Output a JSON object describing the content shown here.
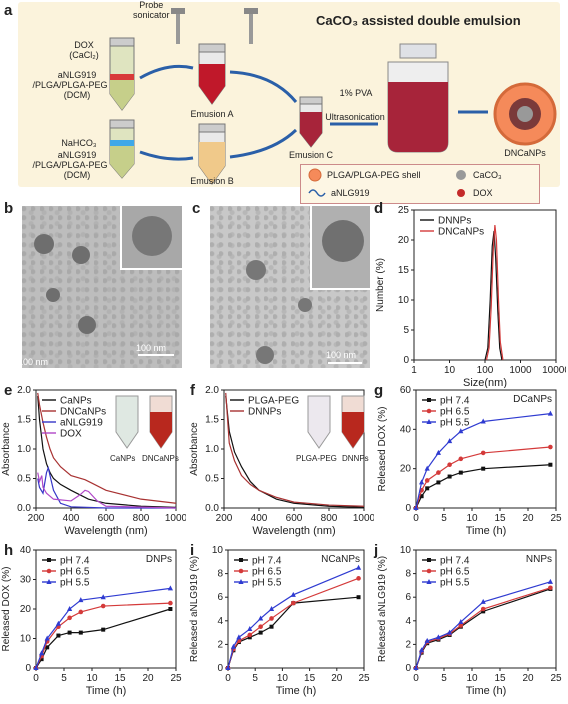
{
  "panels": {
    "a": "a",
    "b": "b",
    "c": "c",
    "d": "d",
    "e": "e",
    "f": "f",
    "g": "g",
    "h": "h",
    "i": "i",
    "j": "j"
  },
  "schematic": {
    "title": "CaCO₃ assisted double emulsion",
    "probe_sonicator": "Probe\nsonicator",
    "tube1_labels": [
      "DOX",
      "(CaCl₂)",
      "aNLG919",
      "/PLGA/PLGA-PEG",
      "(DCM)"
    ],
    "tube2_labels": [
      "NaHCO₃",
      "aNLG919",
      "/PLGA/PLGA-PEG",
      "(DCM)"
    ],
    "emulsion_a": "Emusion A",
    "emulsion_b": "Emusion B",
    "emulsion_c": "Emusion C",
    "pva": "1% PVA",
    "ultrasonication": "Ultrasonication",
    "product": "DNCaNPs",
    "legend": {
      "shell": "PLGA/PLGA-PEG shell",
      "caco3": "CaCO₃",
      "anlg": "aNLG919",
      "dox": "DOX"
    }
  },
  "tem": {
    "b_scale": "100 nm",
    "b_scale2": "100 nm",
    "c_scale": "100 nm"
  },
  "inset_e": {
    "tube1": "CaNPs",
    "tube2": "DNCaNPs"
  },
  "inset_f": {
    "tube1": "PLGA-PEG",
    "tube2": "DNNPs"
  },
  "chart_data": [
    {
      "id": "d",
      "type": "line",
      "xlabel": "Size(nm)",
      "ylabel": "Number (%)",
      "xscale": "log",
      "xlim": [
        1,
        10000
      ],
      "ylim": [
        0,
        25
      ],
      "xticks": [
        "1",
        "10",
        "100",
        "1000",
        "10000"
      ],
      "yticks": [
        "0",
        "5",
        "10",
        "15",
        "20",
        "25"
      ],
      "legend_position": "top-left",
      "series": [
        {
          "name": "DNNPs",
          "color": "#111111",
          "x": [
            100,
            120,
            140,
            160,
            180,
            200,
            230,
            260,
            300
          ],
          "y": [
            0,
            2,
            10,
            19,
            21.5,
            17,
            8,
            2,
            0
          ]
        },
        {
          "name": "DNCaNPs",
          "color": "#d43a3a",
          "x": [
            110,
            130,
            150,
            170,
            190,
            210,
            240,
            270,
            320
          ],
          "y": [
            0,
            2,
            9,
            18,
            22.5,
            20,
            10,
            3,
            0
          ]
        }
      ]
    },
    {
      "id": "e",
      "type": "line",
      "xlabel": "Wavelength (nm)",
      "ylabel": "Absorbance",
      "xlim": [
        200,
        1000
      ],
      "ylim": [
        0,
        2.0
      ],
      "xticks": [
        "200",
        "400",
        "600",
        "800",
        "1000"
      ],
      "yticks": [
        "0.0",
        "0.5",
        "1.0",
        "1.5",
        "2.0"
      ],
      "legend_position": "top-left",
      "series": [
        {
          "name": "CaNPs",
          "color": "#111111",
          "x": [
            210,
            220,
            240,
            260,
            280,
            300,
            340,
            400,
            500,
            600,
            800,
            1000
          ],
          "y": [
            1.9,
            1.5,
            1.0,
            0.75,
            0.6,
            0.5,
            0.4,
            0.3,
            0.15,
            0.08,
            0.03,
            0.01
          ]
        },
        {
          "name": "DNCaNPs",
          "color": "#a83232",
          "x": [
            210,
            220,
            240,
            260,
            280,
            300,
            340,
            400,
            480,
            520,
            600,
            800,
            1000
          ],
          "y": [
            1.95,
            1.75,
            1.45,
            1.2,
            1.0,
            0.85,
            0.7,
            0.55,
            0.48,
            0.42,
            0.3,
            0.15,
            0.08
          ]
        },
        {
          "name": "aNLG919",
          "color": "#3636c8",
          "x": [
            210,
            220,
            240,
            260,
            270,
            280,
            300,
            340,
            400,
            600,
            1000
          ],
          "y": [
            0.5,
            0.35,
            0.25,
            0.6,
            0.68,
            0.55,
            0.3,
            0.08,
            0.02,
            0.0,
            0.0
          ]
        },
        {
          "name": "DOX",
          "color": "#b048c8",
          "x": [
            210,
            220,
            233,
            240,
            260,
            300,
            400,
            450,
            480,
            500,
            550,
            600,
            1000
          ],
          "y": [
            0.6,
            0.45,
            0.55,
            0.35,
            0.25,
            0.15,
            0.12,
            0.22,
            0.3,
            0.28,
            0.12,
            0.03,
            0.0
          ]
        }
      ]
    },
    {
      "id": "f",
      "type": "line",
      "xlabel": "Wavelength (nm)",
      "ylabel": "Absorbance",
      "xlim": [
        200,
        1000
      ],
      "ylim": [
        0,
        2.0
      ],
      "xticks": [
        "200",
        "400",
        "600",
        "800",
        "1000"
      ],
      "yticks": [
        "0.0",
        "0.5",
        "1.0",
        "1.5",
        "2.0"
      ],
      "legend_position": "top-left",
      "series": [
        {
          "name": "PLGA-PEG",
          "color": "#111111",
          "x": [
            210,
            230,
            260,
            300,
            350,
            400,
            500,
            600,
            800,
            1000
          ],
          "y": [
            1.9,
            1.3,
            0.95,
            0.7,
            0.45,
            0.3,
            0.15,
            0.08,
            0.03,
            0.01
          ]
        },
        {
          "name": "DNNPs",
          "color": "#a83232",
          "x": [
            210,
            230,
            260,
            300,
            350,
            400,
            500,
            600,
            800,
            1000
          ],
          "y": [
            1.95,
            1.1,
            0.8,
            0.55,
            0.4,
            0.3,
            0.18,
            0.1,
            0.05,
            0.03
          ]
        }
      ]
    },
    {
      "id": "g",
      "type": "line",
      "title": "DCaNPs",
      "xlabel": "Time (h)",
      "ylabel": "Released DOX (%)",
      "xlim": [
        0,
        25
      ],
      "ylim": [
        0,
        60
      ],
      "xticks": [
        "0",
        "5",
        "10",
        "15",
        "20",
        "25"
      ],
      "yticks": [
        "0",
        "20",
        "40",
        "60"
      ],
      "legend_position": "top-left",
      "series": [
        {
          "name": "pH 7.4",
          "color": "#111111",
          "marker": "square",
          "x": [
            0,
            1,
            2,
            4,
            6,
            8,
            12,
            24
          ],
          "y": [
            0,
            6,
            10,
            13,
            16,
            18,
            20,
            22
          ]
        },
        {
          "name": "pH 6.5",
          "color": "#d43a3a",
          "marker": "circle",
          "x": [
            0,
            1,
            2,
            4,
            6,
            8,
            12,
            24
          ],
          "y": [
            0,
            9,
            14,
            18,
            22,
            25,
            28,
            31
          ]
        },
        {
          "name": "pH 5.5",
          "color": "#2f3bd1",
          "marker": "triangle",
          "x": [
            0,
            1,
            2,
            4,
            6,
            8,
            12,
            24
          ],
          "y": [
            0,
            13,
            20,
            28,
            34,
            39,
            44,
            48
          ]
        }
      ]
    },
    {
      "id": "h",
      "type": "line",
      "title": "DNPs",
      "xlabel": "Time (h)",
      "ylabel": "Released DOX (%)",
      "xlim": [
        0,
        25
      ],
      "ylim": [
        0,
        40
      ],
      "xticks": [
        "0",
        "5",
        "10",
        "15",
        "20",
        "25"
      ],
      "yticks": [
        "0",
        "10",
        "20",
        "30",
        "40"
      ],
      "legend_position": "top-left",
      "series": [
        {
          "name": "pH 7.4",
          "color": "#111111",
          "marker": "square",
          "x": [
            0,
            1,
            2,
            4,
            6,
            8,
            12,
            24
          ],
          "y": [
            0,
            3,
            7,
            11,
            12,
            12,
            13,
            20
          ]
        },
        {
          "name": "pH 6.5",
          "color": "#d43a3a",
          "marker": "circle",
          "x": [
            0,
            1,
            2,
            4,
            6,
            8,
            12,
            24
          ],
          "y": [
            0,
            4,
            9,
            14,
            17,
            19,
            21,
            22
          ]
        },
        {
          "name": "pH 5.5",
          "color": "#2f3bd1",
          "marker": "triangle",
          "x": [
            0,
            1,
            2,
            4,
            6,
            8,
            12,
            24
          ],
          "y": [
            0,
            5,
            10,
            15,
            20,
            23,
            24,
            27
          ]
        }
      ]
    },
    {
      "id": "i",
      "type": "line",
      "title": "NCaNPs",
      "xlabel": "Time (h)",
      "ylabel": "Released aNLG919 (%)",
      "xlim": [
        0,
        25
      ],
      "ylim": [
        0,
        10
      ],
      "xticks": [
        "0",
        "5",
        "10",
        "15",
        "20",
        "25"
      ],
      "yticks": [
        "0",
        "2",
        "4",
        "6",
        "8",
        "10"
      ],
      "legend_position": "top-left",
      "series": [
        {
          "name": "pH 7.4",
          "color": "#111111",
          "marker": "square",
          "x": [
            0,
            1,
            2,
            4,
            6,
            8,
            12,
            24
          ],
          "y": [
            0,
            1.5,
            2.2,
            2.6,
            3.0,
            3.5,
            5.5,
            6.0
          ]
        },
        {
          "name": "pH 6.5",
          "color": "#d43a3a",
          "marker": "circle",
          "x": [
            0,
            1,
            2,
            4,
            6,
            8,
            12,
            24
          ],
          "y": [
            0,
            1.6,
            2.3,
            2.8,
            3.5,
            4.2,
            5.5,
            7.6
          ]
        },
        {
          "name": "pH 5.5",
          "color": "#2f3bd1",
          "marker": "triangle",
          "x": [
            0,
            1,
            2,
            4,
            6,
            8,
            12,
            24
          ],
          "y": [
            0,
            1.8,
            2.6,
            3.3,
            4.2,
            5.0,
            6.2,
            8.5
          ]
        }
      ]
    },
    {
      "id": "j",
      "type": "line",
      "title": "NNPs",
      "xlabel": "Time (h)",
      "ylabel": "Released aNLG919 (%)",
      "xlim": [
        0,
        25
      ],
      "ylim": [
        0,
        10
      ],
      "xticks": [
        "0",
        "5",
        "10",
        "15",
        "20",
        "25"
      ],
      "yticks": [
        "0",
        "2",
        "4",
        "6",
        "8",
        "10"
      ],
      "legend_position": "top-left",
      "series": [
        {
          "name": "pH 7.4",
          "color": "#111111",
          "marker": "square",
          "x": [
            0,
            1,
            2,
            4,
            6,
            8,
            12,
            24
          ],
          "y": [
            0,
            1.3,
            2.1,
            2.4,
            2.8,
            3.5,
            4.8,
            6.7
          ]
        },
        {
          "name": "pH 6.5",
          "color": "#d43a3a",
          "marker": "circle",
          "x": [
            0,
            1,
            2,
            4,
            6,
            8,
            12,
            24
          ],
          "y": [
            0,
            1.4,
            2.2,
            2.5,
            2.9,
            3.6,
            5.0,
            6.8
          ]
        },
        {
          "name": "pH 5.5",
          "color": "#2f3bd1",
          "marker": "triangle",
          "x": [
            0,
            1,
            2,
            4,
            6,
            8,
            12,
            24
          ],
          "y": [
            0,
            1.5,
            2.3,
            2.6,
            3.0,
            3.9,
            5.6,
            7.3
          ]
        }
      ]
    }
  ]
}
